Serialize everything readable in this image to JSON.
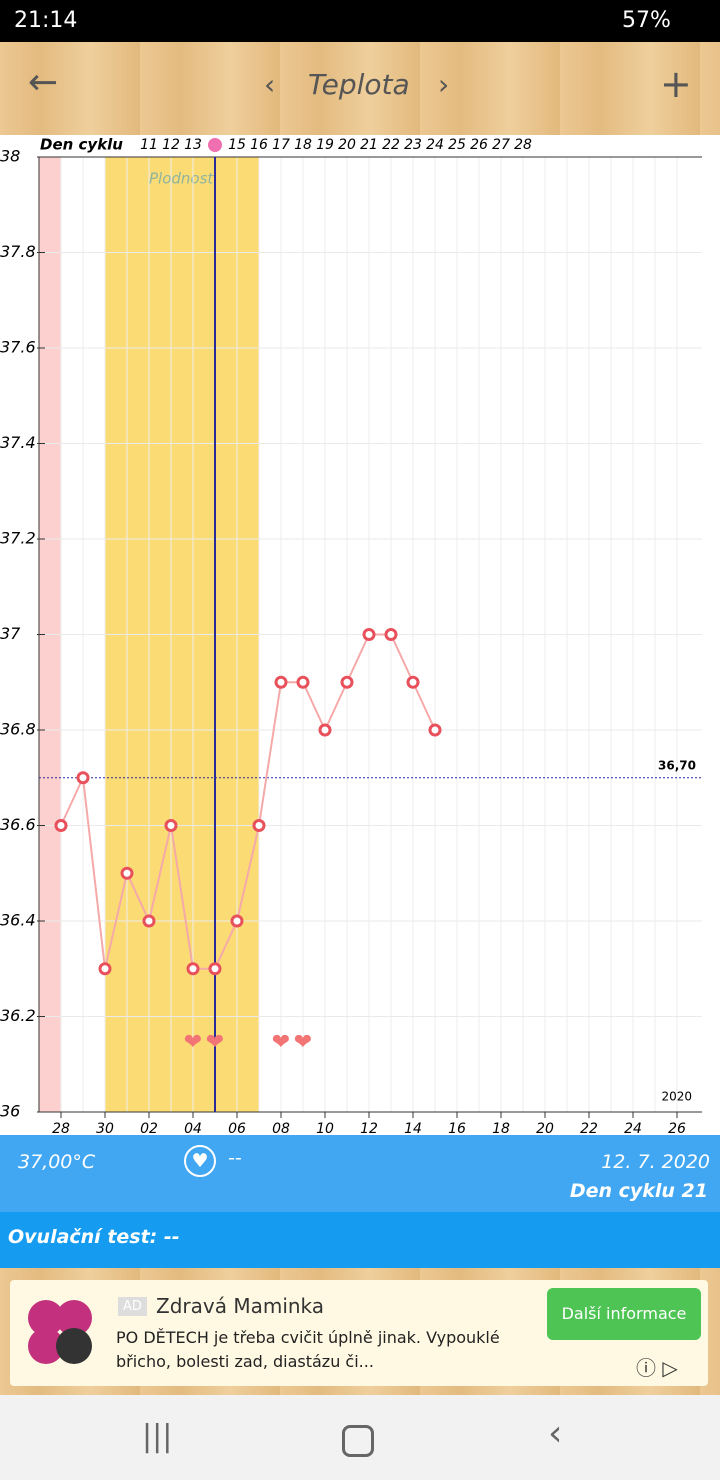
{
  "status_bar": {
    "time": "21:14",
    "battery": "57%"
  },
  "header": {
    "title": "Teplota"
  },
  "chart_data": {
    "type": "line",
    "cycle_label": "Den cyklu",
    "cycle_days": [
      null,
      null,
      null,
      null,
      "11",
      "12",
      "13",
      null,
      "15",
      "16",
      "17",
      "18",
      "19",
      "20",
      "21",
      "22",
      "23",
      "24",
      "25",
      "26",
      "27",
      "28",
      null,
      null,
      null,
      null,
      null,
      null,
      null
    ],
    "categories": [
      "28",
      null,
      "30",
      null,
      "02",
      null,
      "04",
      null,
      "06",
      null,
      "08",
      null,
      "10",
      null,
      "12",
      null,
      "14",
      null,
      "16",
      null,
      "18",
      null,
      "20",
      null,
      "22",
      null,
      "24",
      null,
      "26"
    ],
    "values": [
      36.6,
      36.7,
      36.3,
      36.5,
      36.4,
      36.6,
      36.3,
      36.3,
      36.4,
      36.6,
      36.9,
      36.9,
      36.8,
      36.9,
      37,
      37,
      36.9,
      36.8,
      null,
      null,
      null,
      null,
      null,
      null,
      null,
      null,
      null,
      null,
      null
    ],
    "color": "#f5a9a9",
    "marker_color": "#e8505b",
    "ylim": [
      36,
      38
    ],
    "yticks": [
      36,
      36.2,
      36.4,
      36.6,
      36.8,
      37,
      37.2,
      37.4,
      37.6,
      37.8,
      38
    ],
    "grid": true,
    "period_range": [
      -1,
      0
    ],
    "fertile_range": [
      2,
      9
    ],
    "fertile_label": "Plodnost",
    "ovulation_day": 7,
    "intercourse_days": [
      6,
      7,
      10,
      11
    ],
    "threshold": {
      "value": 36.7,
      "label": "36,70"
    },
    "year": "2020"
  },
  "info": {
    "temperature": "37,00°C",
    "intercourse": "--",
    "date": "12. 7. 2020",
    "cycle_day": "Den cyklu 21",
    "ovulation_test": "Ovulační test: --"
  },
  "ad": {
    "badge": "AD",
    "title": "Zdravá Maminka",
    "text": "PO DĚTECH je třeba cvičit úplně jinak. Vypouklé břicho, bolesti zad, diastázu či...",
    "button": "Další informace"
  }
}
